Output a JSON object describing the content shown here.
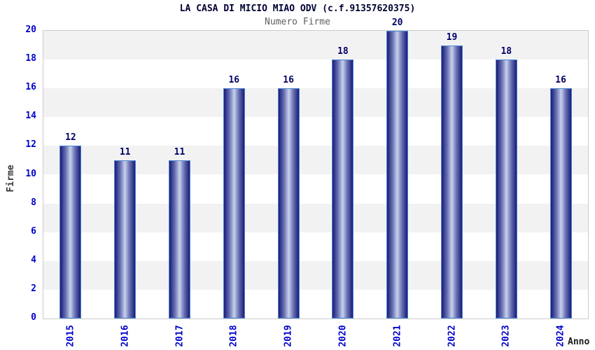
{
  "header": {
    "title": "LA CASA DI MICIO MIAO ODV (c.f.91357620375)",
    "subtitle": "Numero Firme"
  },
  "chart_data": {
    "type": "bar",
    "title": "LA CASA DI MICIO MIAO ODV (c.f.91357620375)",
    "subtitle": "Numero Firme",
    "categories": [
      "2015",
      "2016",
      "2017",
      "2018",
      "2019",
      "2020",
      "2021",
      "2022",
      "2023",
      "2024"
    ],
    "values": [
      12,
      11,
      11,
      16,
      16,
      18,
      20,
      19,
      18,
      16
    ],
    "xlabel": "Anno",
    "ylabel": "Firme",
    "ylim": [
      0,
      20
    ],
    "ytick_step": 2,
    "legend": "none",
    "grid": "alternating-horizontal-bands",
    "colors": {
      "band_gray": "#f2f2f2",
      "band_white": "#ffffff",
      "plot_border": "#cccccc",
      "bar_edge_dark": "#1a1a78",
      "bar_mid": "#6a74b4",
      "bar_center_light": "#c9d1ec",
      "bar_border": "#4f8ad2",
      "tick_label": "#0000cc",
      "value_label": "#000066",
      "title_color": "#000033",
      "subtitle_color": "#5f5f5f"
    }
  }
}
